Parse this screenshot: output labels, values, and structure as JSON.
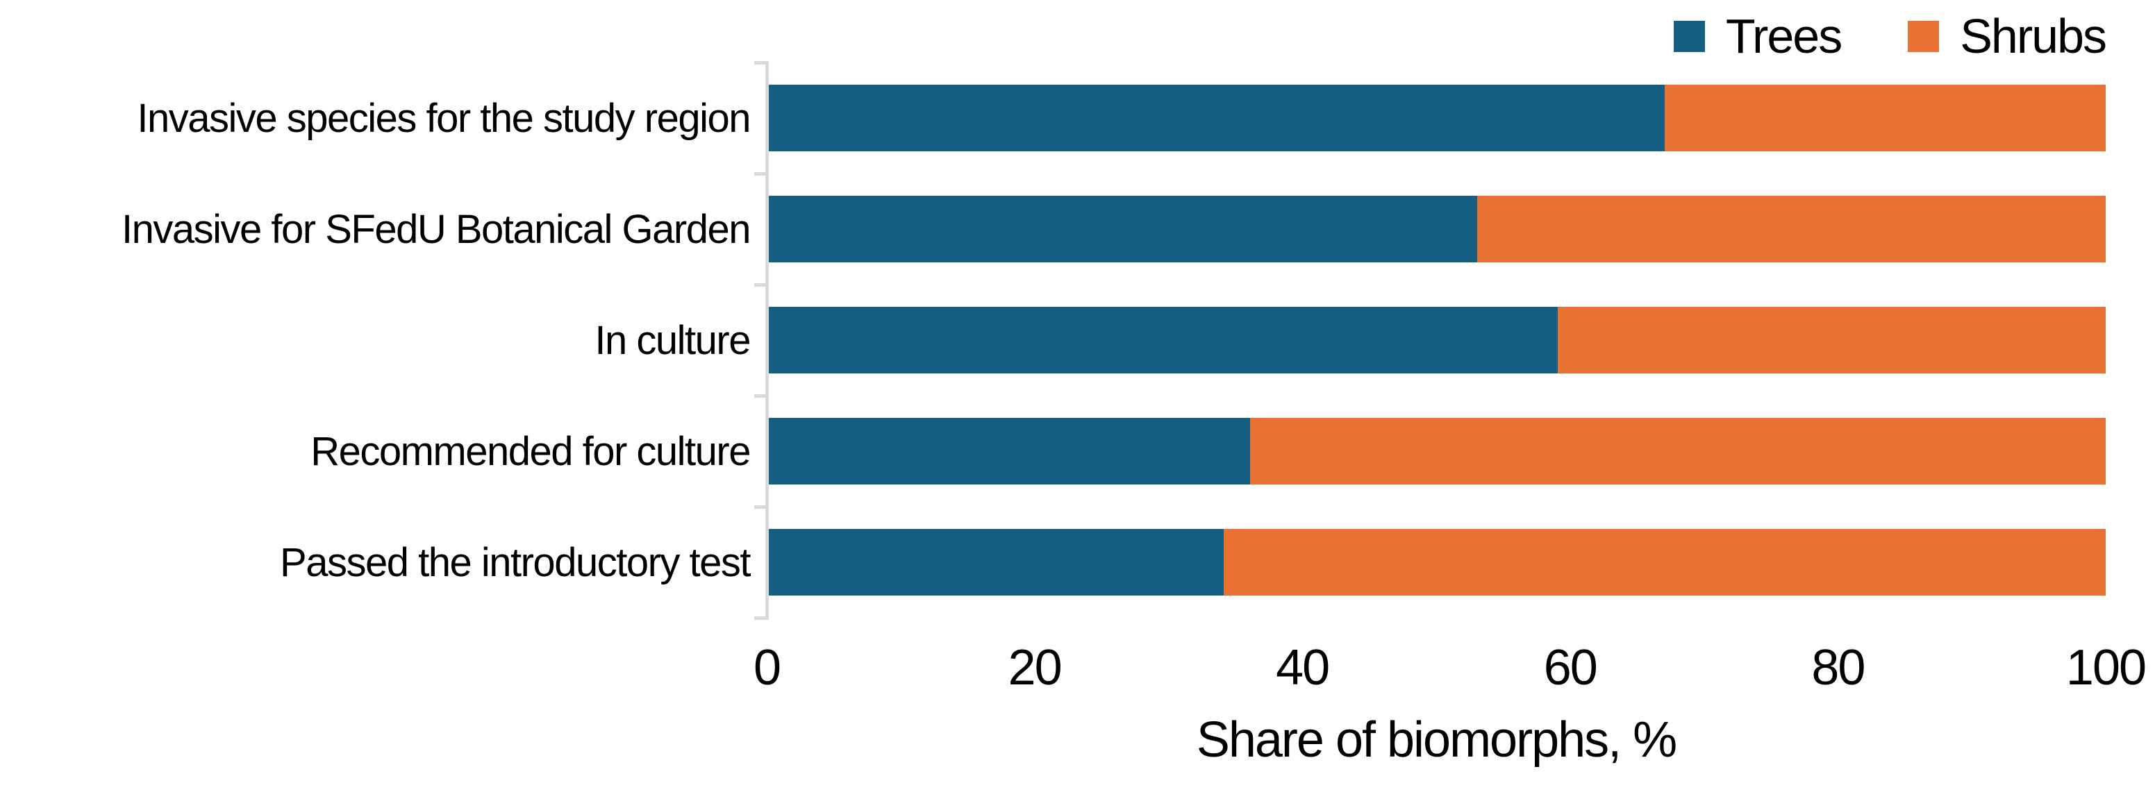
{
  "chart_data": {
    "type": "bar",
    "orientation": "horizontal",
    "stacked": true,
    "stacked_total": 100,
    "title": "",
    "xlabel": "Share of biomorphs, %",
    "ylabel": "",
    "xlim": [
      0,
      100
    ],
    "x_ticks": [
      0,
      20,
      40,
      60,
      80,
      100
    ],
    "grid": false,
    "legend_position": "top-right",
    "categories": [
      "Invasive species for the study region",
      "Invasive for SFedU Botanical Garden",
      "In culture",
      "Recommended for culture",
      "Passed the introductory test"
    ],
    "series": [
      {
        "name": "Trees",
        "color": "#156082",
        "values": [
          67,
          53,
          59,
          36,
          34
        ]
      },
      {
        "name": "Shrubs",
        "color": "#E97132",
        "values": [
          33,
          47,
          41,
          64,
          66
        ]
      }
    ],
    "axis_line_color": "#D9D9D9",
    "text_color": "#000000",
    "background": "#FFFFFF"
  }
}
